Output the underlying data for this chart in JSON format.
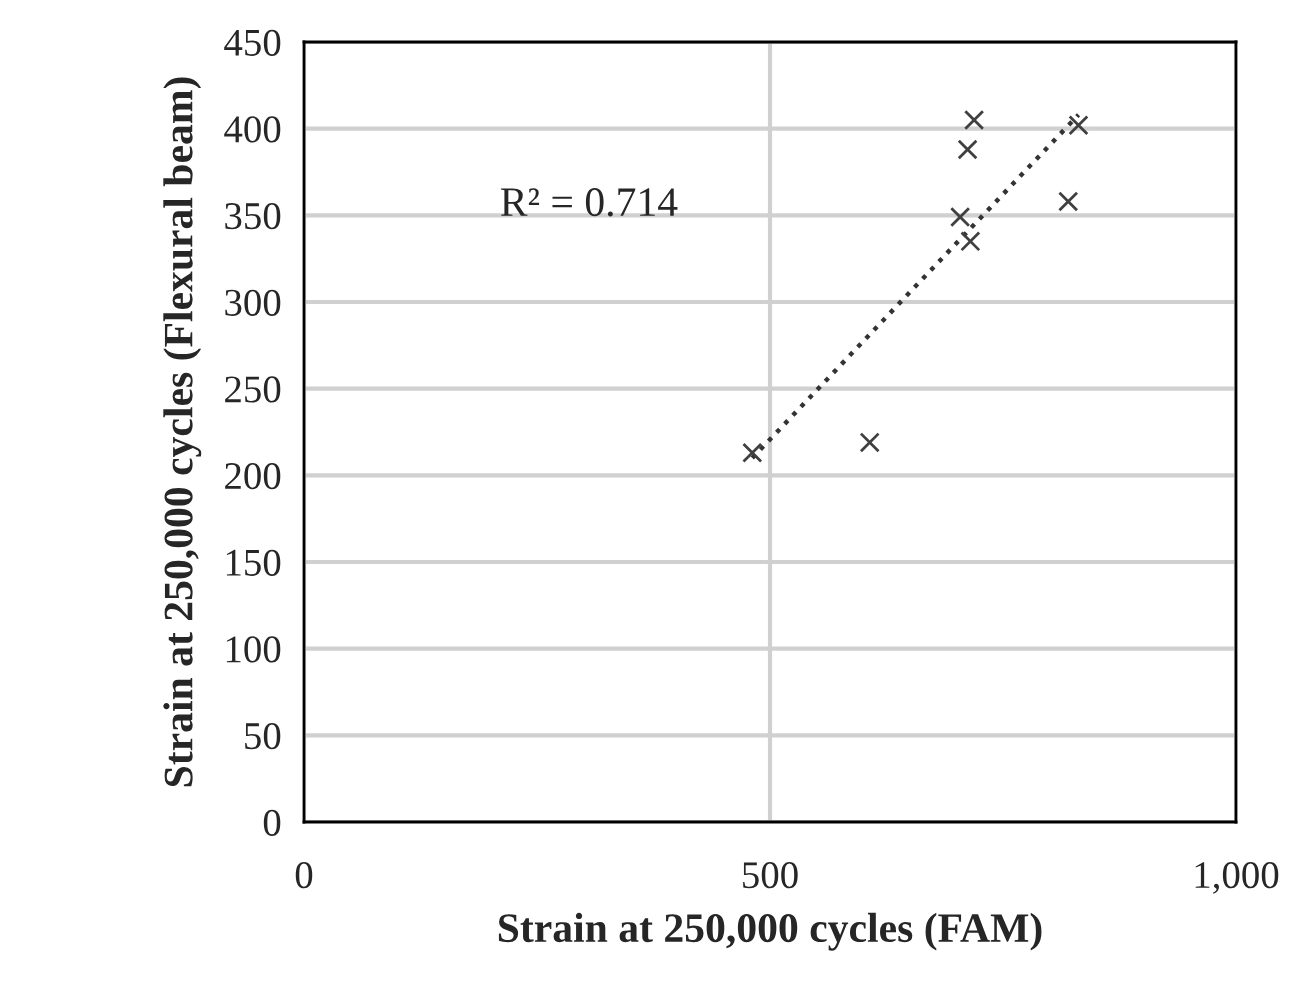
{
  "chart_data": {
    "type": "scatter",
    "xlabel": "Strain at 250,000 cycles (FAM)",
    "ylabel": "Strain at 250,000 cycles (Flexural beam)",
    "series": [
      {
        "color": "#404040",
        "marker": "cross",
        "x": [
          719,
          712,
          831,
          820,
          704,
          715,
          607,
          481
        ],
        "values": [
          405,
          388,
          402,
          358,
          349,
          335,
          219,
          213
        ]
      },
      {
        "type": "line",
        "color": "#333333",
        "line_style": "dotted",
        "marker": "none",
        "x": [
          481,
          831
        ],
        "values": [
          210,
          408
        ]
      }
    ],
    "annotations": [
      "R² = 0.714"
    ],
    "xlim": [
      0,
      1000
    ],
    "xticks": [
      0,
      500,
      {
        "value": 1000,
        "label": "1,000"
      }
    ],
    "ylim": [
      0,
      450
    ],
    "yticks": [
      0,
      50,
      100,
      150,
      200,
      250,
      300,
      350,
      400,
      450
    ],
    "grid": true,
    "legend": false
  }
}
